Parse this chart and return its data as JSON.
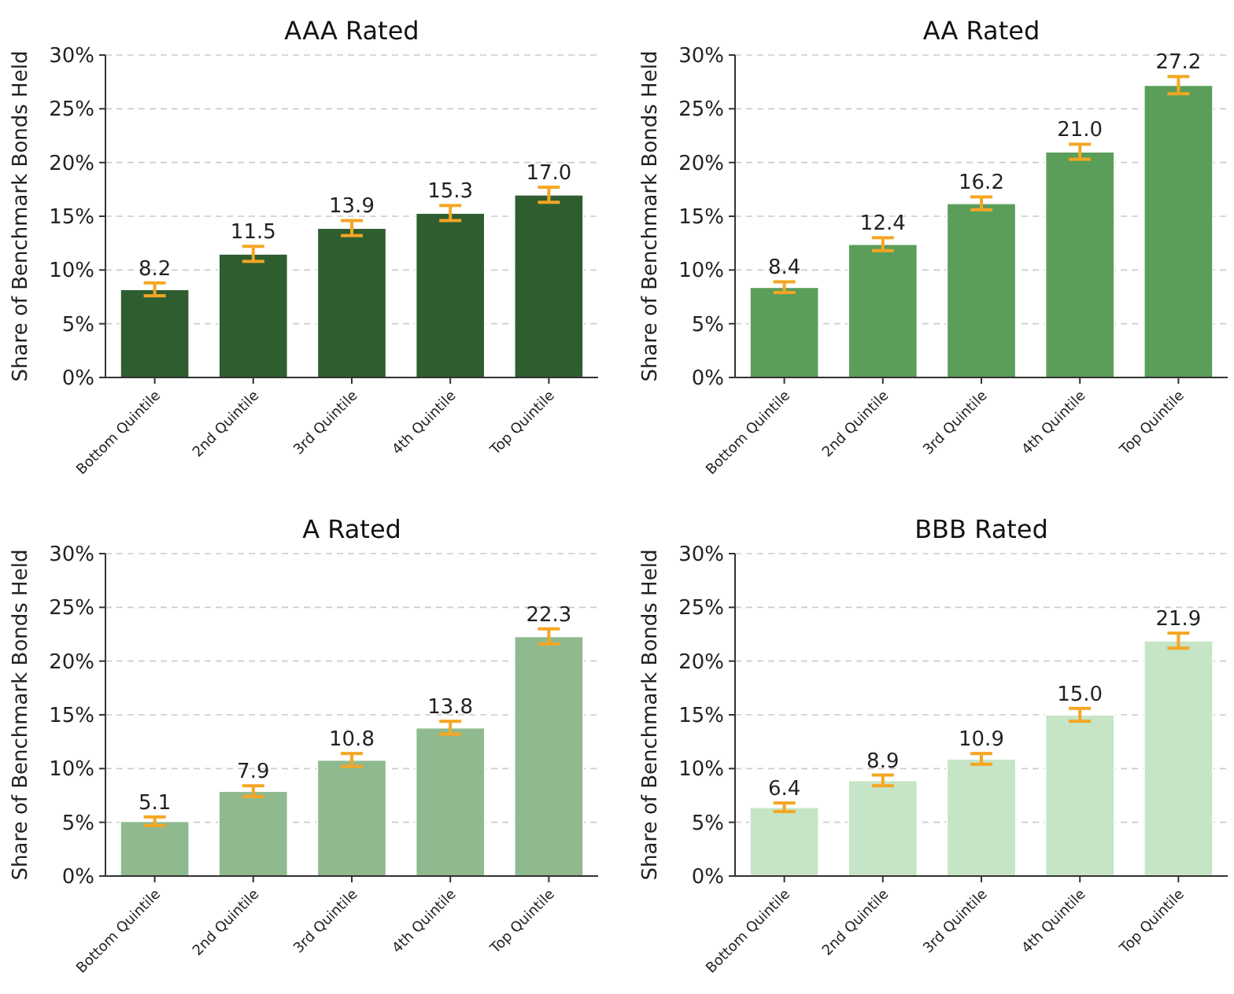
{
  "chart_data": [
    {
      "type": "bar",
      "title": "AAA Rated",
      "ylabel": "Share of Benchmark Bonds Held",
      "categories": [
        "Bottom Quintile",
        "2nd Quintile",
        "3rd Quintile",
        "4th Quintile",
        "Top Quintile"
      ],
      "values": [
        8.2,
        11.5,
        13.9,
        15.3,
        17.0
      ],
      "value_labels": [
        "8.2",
        "11.5",
        "13.9",
        "15.3",
        "17.0"
      ],
      "errors": [
        0.6,
        0.7,
        0.7,
        0.7,
        0.7
      ],
      "color": "#2e5e30",
      "ylim": [
        0,
        30
      ],
      "yticks": [
        {
          "value": 0,
          "label": "0%"
        },
        {
          "value": 5,
          "label": "5%"
        },
        {
          "value": 10,
          "label": "10%"
        },
        {
          "value": 15,
          "label": "15%"
        },
        {
          "value": 20,
          "label": "20%"
        },
        {
          "value": 25,
          "label": "25%"
        },
        {
          "value": 30,
          "label": "30%"
        }
      ],
      "grid": "y"
    },
    {
      "type": "bar",
      "title": "AA Rated",
      "ylabel": "Share of Benchmark Bonds Held",
      "categories": [
        "Bottom Quintile",
        "2nd Quintile",
        "3rd Quintile",
        "4th Quintile",
        "Top Quintile"
      ],
      "values": [
        8.4,
        12.4,
        16.2,
        21.0,
        27.2
      ],
      "value_labels": [
        "8.4",
        "12.4",
        "16.2",
        "21.0",
        "27.2"
      ],
      "errors": [
        0.5,
        0.6,
        0.6,
        0.7,
        0.8
      ],
      "color": "#5a9e5a",
      "ylim": [
        0,
        30
      ],
      "yticks": [
        {
          "value": 0,
          "label": "0%"
        },
        {
          "value": 5,
          "label": "5%"
        },
        {
          "value": 10,
          "label": "10%"
        },
        {
          "value": 15,
          "label": "15%"
        },
        {
          "value": 20,
          "label": "20%"
        },
        {
          "value": 25,
          "label": "25%"
        },
        {
          "value": 30,
          "label": "30%"
        }
      ],
      "grid": "y"
    },
    {
      "type": "bar",
      "title": "A Rated",
      "ylabel": "Share of Benchmark Bonds Held",
      "categories": [
        "Bottom Quintile",
        "2nd Quintile",
        "3rd Quintile",
        "4th Quintile",
        "Top Quintile"
      ],
      "values": [
        5.1,
        7.9,
        10.8,
        13.8,
        22.3
      ],
      "value_labels": [
        "5.1",
        "7.9",
        "10.8",
        "13.8",
        "22.3"
      ],
      "errors": [
        0.4,
        0.5,
        0.6,
        0.6,
        0.7
      ],
      "color": "#8fba8f",
      "ylim": [
        0,
        30
      ],
      "yticks": [
        {
          "value": 0,
          "label": "0%"
        },
        {
          "value": 5,
          "label": "5%"
        },
        {
          "value": 10,
          "label": "10%"
        },
        {
          "value": 15,
          "label": "15%"
        },
        {
          "value": 20,
          "label": "20%"
        },
        {
          "value": 25,
          "label": "25%"
        },
        {
          "value": 30,
          "label": "30%"
        }
      ],
      "grid": "y"
    },
    {
      "type": "bar",
      "title": "BBB Rated",
      "ylabel": "Share of Benchmark Bonds Held",
      "categories": [
        "Bottom Quintile",
        "2nd Quintile",
        "3rd Quintile",
        "4th Quintile",
        "Top Quintile"
      ],
      "values": [
        6.4,
        8.9,
        10.9,
        15.0,
        21.9
      ],
      "value_labels": [
        "6.4",
        "8.9",
        "10.9",
        "15.0",
        "21.9"
      ],
      "errors": [
        0.4,
        0.5,
        0.5,
        0.6,
        0.7
      ],
      "color": "#c6e4c6",
      "ylim": [
        0,
        30
      ],
      "yticks": [
        {
          "value": 0,
          "label": "0%"
        },
        {
          "value": 5,
          "label": "5%"
        },
        {
          "value": 10,
          "label": "10%"
        },
        {
          "value": 15,
          "label": "15%"
        },
        {
          "value": 20,
          "label": "20%"
        },
        {
          "value": 25,
          "label": "25%"
        },
        {
          "value": 30,
          "label": "30%"
        }
      ],
      "grid": "y"
    }
  ]
}
